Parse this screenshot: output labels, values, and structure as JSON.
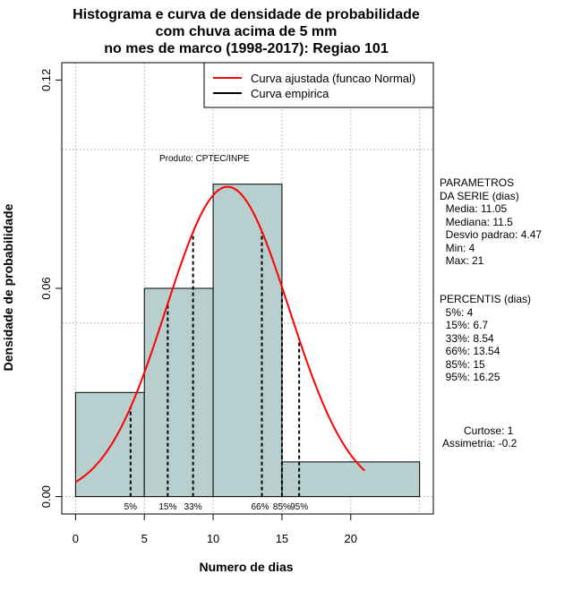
{
  "chart_data": {
    "type": "histogram",
    "title_lines": [
      "Histograma e curva de densidade de probabilidade",
      "com chuva acima de 5 mm",
      "no mes de marco (1998-2017): Regiao 101"
    ],
    "xlabel": "Numero de dias",
    "ylabel": "Densidade de probabilidade",
    "xlim": [
      -1,
      26
    ],
    "ylim": [
      -0.005,
      0.125
    ],
    "x_ticks": [
      "0",
      "5",
      "10",
      "15",
      "20"
    ],
    "y_ticks": [
      "0.00",
      "0.06",
      "0.12"
    ],
    "grid_x": [
      0,
      5,
      10,
      15,
      20,
      25
    ],
    "grid_y": [
      0,
      0.05,
      0.1
    ],
    "bins": [
      {
        "start": 0,
        "end": 5,
        "density": 0.03
      },
      {
        "start": 5,
        "end": 10,
        "density": 0.06
      },
      {
        "start": 10,
        "end": 15,
        "density": 0.09
      },
      {
        "start": 15,
        "end": 25,
        "density": 0.01
      }
    ],
    "normal_fit": {
      "mean": 11.05,
      "sd": 4.47,
      "x_from": 0,
      "x_to": 21
    },
    "percentile_lines": [
      {
        "label": "5%",
        "x": 4
      },
      {
        "label": "15%",
        "x": 6.7
      },
      {
        "label": "33%",
        "x": 8.54
      },
      {
        "label": "66%",
        "x": 13.54
      },
      {
        "label": "85%",
        "x": 15
      },
      {
        "label": "95%",
        "x": 16.25
      }
    ],
    "legend": [
      {
        "label": "Curva ajustada (funcao Normal)",
        "color": "#ff0000"
      },
      {
        "label": "Curva empirica",
        "color": "#000000"
      }
    ],
    "legend_position": "top-right",
    "product_label": "Produto: CPTEC/INPE",
    "bar_color": "#b7cfcf"
  },
  "side_panel": {
    "params_lines": [
      "PARAMETROS",
      "DA SERIE (dias)",
      "  Media: 11.05",
      "  Mediana: 11.5",
      "  Desvio padrao: 4.47",
      "  Min: 4",
      "  Max: 21"
    ],
    "percentis_lines": [
      "PERCENTIS (dias)",
      "  5%: 4",
      "  15%: 6.7",
      "  33%: 8.54",
      "  66%: 13.54",
      "  85%: 15",
      "  95%: 16.25"
    ],
    "curtose": "Curtose: 1",
    "assimetria": "Assimetria: -0.2"
  }
}
